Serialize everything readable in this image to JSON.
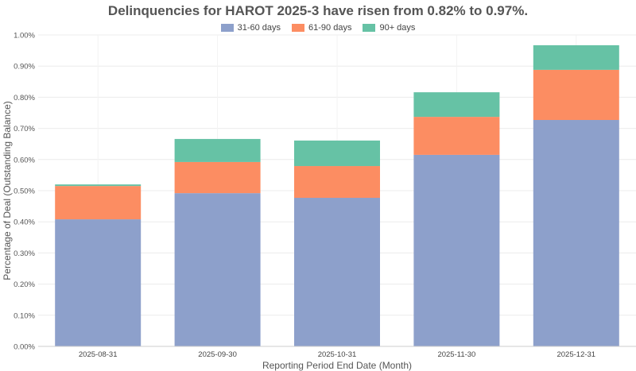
{
  "chart_data": {
    "type": "bar",
    "stacked": true,
    "title": "Delinquencies for HAROT 2025-3 have risen from 0.82% to 0.97%.",
    "xlabel": "Reporting Period End Date (Month)",
    "ylabel": "Percentage of Deal (Outstanding Balance)",
    "ylim": [
      0,
      1.0
    ],
    "yticks": [
      "0.00%",
      "0.10%",
      "0.20%",
      "0.30%",
      "0.40%",
      "0.50%",
      "0.60%",
      "0.70%",
      "0.80%",
      "0.90%",
      "1.00%"
    ],
    "grid": true,
    "legend_position": "top-center",
    "categories": [
      "2025-08-31",
      "2025-09-30",
      "2025-10-31",
      "2025-11-30",
      "2025-12-31"
    ],
    "series": [
      {
        "name": "31-60 days",
        "color": "#8da0cb",
        "values": [
          0.408,
          0.492,
          0.477,
          0.615,
          0.727
        ]
      },
      {
        "name": "61-90 days",
        "color": "#fc8d62",
        "values": [
          0.107,
          0.1,
          0.102,
          0.122,
          0.161
        ]
      },
      {
        "name": "90+ days",
        "color": "#66c2a5",
        "values": [
          0.005,
          0.074,
          0.082,
          0.079,
          0.079
        ]
      }
    ]
  }
}
